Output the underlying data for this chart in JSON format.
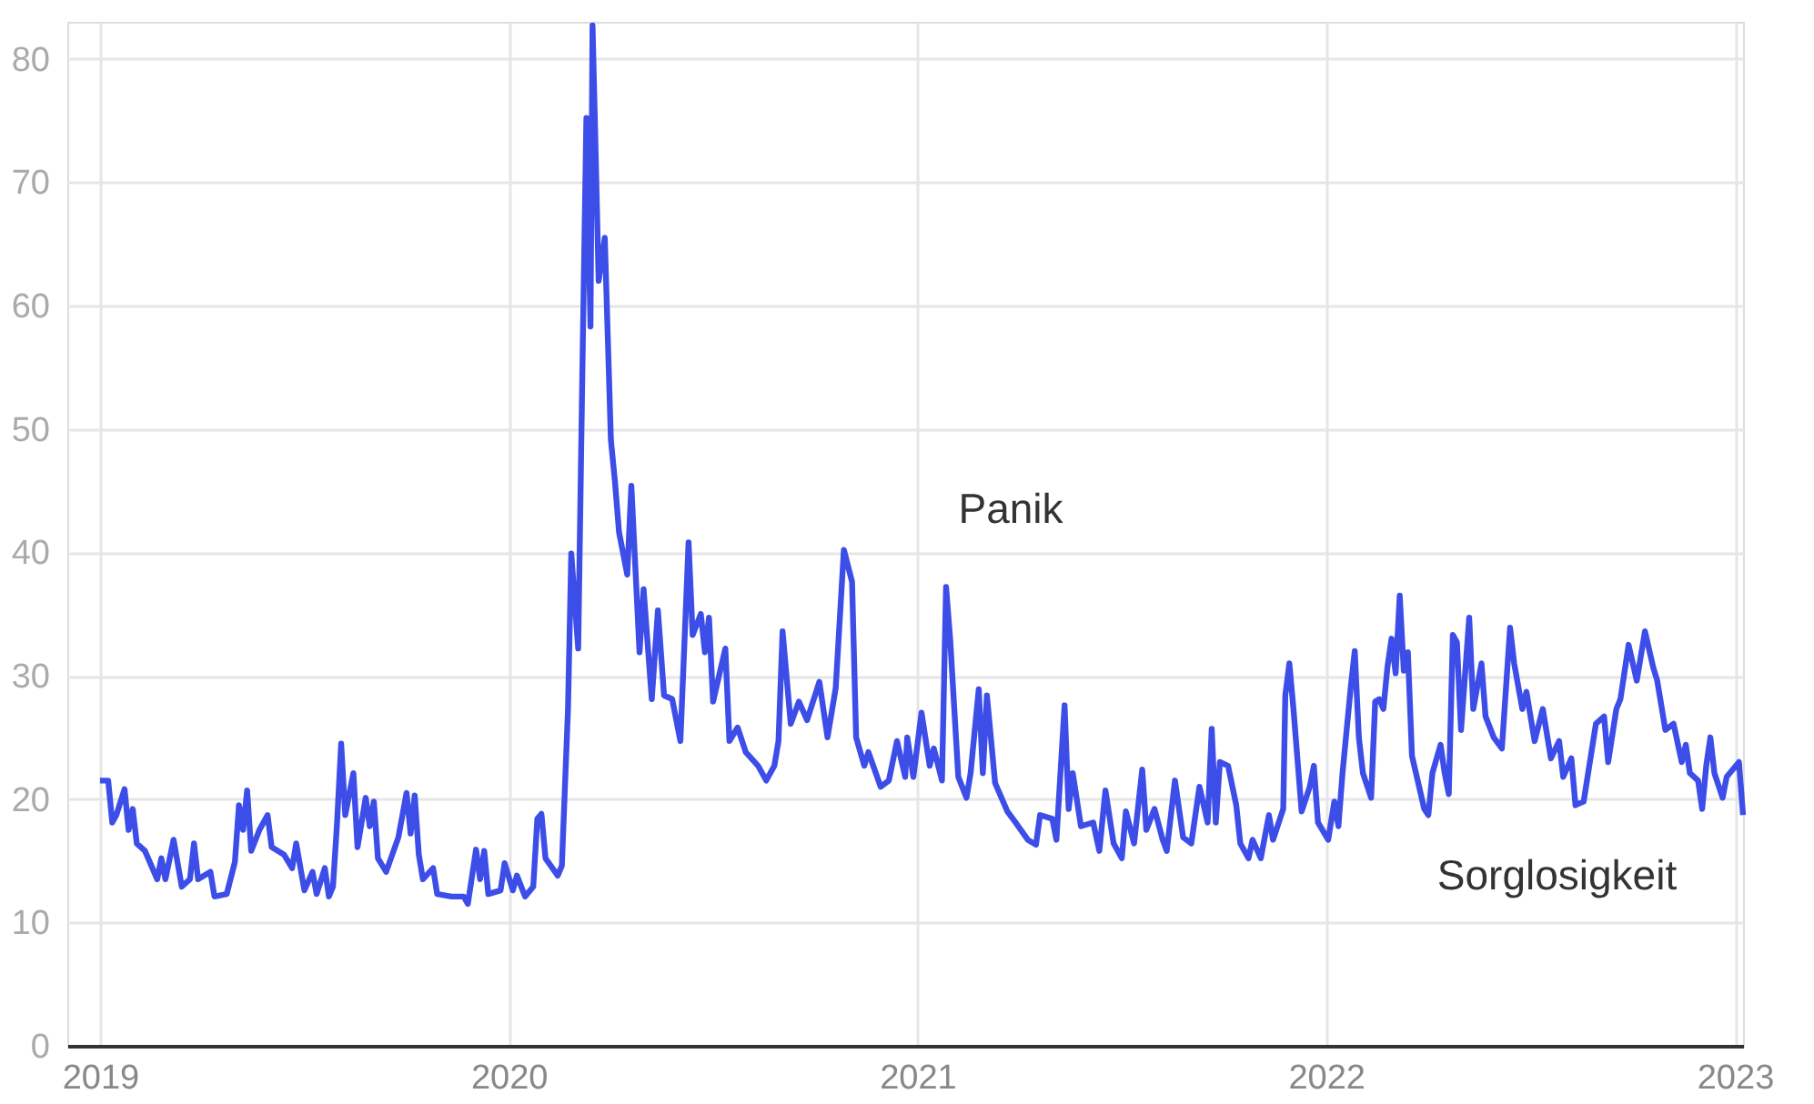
{
  "chart_data": {
    "type": "line",
    "x": [
      2019.0,
      2019.02,
      2019.03,
      2019.04,
      2019.06,
      2019.07,
      2019.08,
      2019.09,
      2019.11,
      2019.14,
      2019.15,
      2019.16,
      2019.18,
      2019.2,
      2019.22,
      2019.23,
      2019.24,
      2019.27,
      2019.28,
      2019.31,
      2019.33,
      2019.34,
      2019.35,
      2019.36,
      2019.37,
      2019.39,
      2019.41,
      2019.42,
      2019.45,
      2019.47,
      2019.48,
      2019.5,
      2019.52,
      2019.53,
      2019.55,
      2019.56,
      2019.57,
      2019.58,
      2019.59,
      2019.6,
      2019.62,
      2019.63,
      2019.65,
      2019.66,
      2019.67,
      2019.68,
      2019.7,
      2019.73,
      2019.75,
      2019.76,
      2019.77,
      2019.78,
      2019.79,
      2019.815,
      2019.825,
      2019.86,
      2019.89,
      2019.9,
      2019.92,
      2019.93,
      2019.94,
      2019.95,
      2019.98,
      2019.99,
      2020.01,
      2020.02,
      2020.04,
      2020.06,
      2020.07,
      2020.08,
      2020.09,
      2020.12,
      2020.13,
      2020.145,
      2020.153,
      2020.17,
      2020.18,
      2020.19,
      2020.2,
      2020.205,
      2020.21,
      2020.22,
      2020.235,
      2020.25,
      2020.26,
      2020.27,
      2020.29,
      2020.3,
      2020.32,
      2020.33,
      2020.35,
      2020.365,
      2020.38,
      2020.4,
      2020.42,
      2020.44,
      2020.45,
      2020.47,
      2020.48,
      2020.49,
      2020.5,
      2020.53,
      2020.54,
      2020.56,
      2020.58,
      2020.61,
      2020.63,
      2020.65,
      2020.66,
      2020.67,
      2020.69,
      2020.71,
      2020.73,
      2020.76,
      2020.78,
      2020.8,
      2020.82,
      2020.84,
      2020.85,
      2020.87,
      2020.88,
      2020.91,
      2020.93,
      2020.95,
      2020.97,
      2020.975,
      2020.99,
      2021.01,
      2021.03,
      2021.04,
      2021.06,
      2021.07,
      2021.08,
      2021.1,
      2021.12,
      2021.13,
      2021.15,
      2021.16,
      2021.17,
      2021.19,
      2021.22,
      2021.24,
      2021.27,
      2021.29,
      2021.3,
      2021.33,
      2021.34,
      2021.36,
      2021.37,
      2021.38,
      2021.4,
      2021.43,
      2021.445,
      2021.46,
      2021.48,
      2021.5,
      2021.51,
      2021.53,
      2021.55,
      2021.56,
      2021.58,
      2021.6,
      2021.61,
      2021.63,
      2021.65,
      2021.67,
      2021.69,
      2021.71,
      2021.72,
      2021.73,
      2021.74,
      2021.76,
      2021.78,
      2021.79,
      2021.81,
      2021.82,
      2021.84,
      2021.86,
      2021.87,
      2021.895,
      2021.9,
      2021.91,
      2021.92,
      2021.94,
      2021.96,
      2021.97,
      2021.98,
      2022.005,
      2022.02,
      2022.03,
      2022.04,
      2022.06,
      2022.07,
      2022.08,
      2022.09,
      2022.11,
      2022.12,
      2022.13,
      2022.14,
      2022.15,
      2022.16,
      2022.17,
      2022.18,
      2022.19,
      2022.2,
      2022.21,
      2022.24,
      2022.25,
      2022.26,
      2022.28,
      2022.29,
      2022.3,
      2022.31,
      2022.32,
      2022.33,
      2022.35,
      2022.36,
      2022.38,
      2022.39,
      2022.41,
      2022.43,
      2022.45,
      2022.46,
      2022.48,
      2022.49,
      2022.51,
      2022.53,
      2022.55,
      2022.57,
      2022.58,
      2022.6,
      2022.61,
      2022.63,
      2022.66,
      2022.68,
      2022.69,
      2022.71,
      2022.72,
      2022.74,
      2022.76,
      2022.78,
      2022.8,
      2022.81,
      2022.83,
      2022.85,
      2022.87,
      2022.88,
      2022.89,
      2022.91,
      2022.92,
      2022.93,
      2022.94,
      2022.95,
      2022.97,
      2022.98,
      2023.01,
      2023.02
    ],
    "series": [
      {
        "color": "#3d4ee8",
        "values": [
          21.5,
          21.5,
          18.1,
          18.7,
          20.8,
          17.5,
          19.2,
          16.4,
          15.8,
          13.5,
          15.2,
          13.5,
          16.7,
          12.9,
          13.5,
          16.4,
          13.5,
          14.1,
          12.1,
          12.3,
          14.9,
          19.5,
          17.5,
          20.7,
          15.8,
          17.5,
          18.7,
          16.1,
          15.5,
          14.4,
          16.4,
          12.6,
          14.1,
          12.3,
          14.4,
          12.1,
          12.9,
          18.1,
          24.5,
          18.7,
          22.1,
          16.1,
          20.1,
          17.8,
          19.8,
          15.2,
          14.1,
          16.9,
          20.5,
          17.2,
          20.3,
          15.5,
          13.5,
          14.4,
          12.3,
          12.1,
          12.1,
          11.5,
          15.9,
          13.5,
          15.8,
          12.3,
          12.6,
          14.8,
          12.6,
          13.8,
          12.1,
          12.9,
          18.4,
          18.8,
          15.2,
          13.8,
          14.6,
          27.3,
          39.9,
          32.2,
          54.3,
          75.2,
          58.3,
          82.7,
          76.1,
          62.0,
          65.5,
          49.1,
          45.7,
          41.6,
          38.2,
          45.4,
          31.9,
          37.0,
          28.1,
          35.3,
          28.4,
          28.1,
          24.7,
          40.8,
          33.3,
          35.0,
          31.9,
          34.7,
          27.9,
          32.2,
          24.7,
          25.8,
          23.8,
          22.7,
          21.5,
          22.7,
          24.7,
          33.6,
          26.1,
          27.9,
          26.4,
          29.5,
          25.0,
          29.0,
          40.2,
          37.6,
          25.0,
          22.7,
          23.8,
          21.0,
          21.5,
          24.7,
          21.8,
          25.0,
          21.8,
          27.0,
          22.7,
          24.1,
          21.5,
          37.2,
          33.0,
          21.8,
          20.1,
          22.1,
          28.9,
          22.1,
          28.4,
          21.3,
          19.0,
          18.1,
          16.7,
          16.3,
          18.7,
          18.4,
          16.7,
          27.6,
          19.2,
          22.1,
          17.8,
          18.1,
          15.8,
          20.7,
          16.4,
          15.2,
          19.0,
          16.4,
          22.4,
          17.5,
          19.2,
          16.7,
          15.8,
          21.5,
          16.9,
          16.4,
          21.0,
          18.1,
          25.7,
          18.1,
          23.0,
          22.7,
          19.5,
          16.4,
          15.2,
          16.7,
          15.2,
          18.7,
          16.7,
          19.2,
          28.4,
          31.0,
          27.3,
          19.0,
          21.0,
          22.7,
          18.1,
          16.7,
          19.8,
          17.8,
          22.1,
          29.0,
          32.0,
          25.0,
          22.1,
          20.1,
          27.9,
          28.1,
          27.3,
          30.7,
          33.0,
          30.2,
          36.5,
          30.4,
          31.9,
          23.5,
          19.2,
          18.7,
          22.1,
          24.4,
          22.1,
          20.4,
          33.3,
          32.7,
          25.6,
          34.7,
          27.3,
          31.0,
          26.7,
          25.0,
          24.1,
          33.9,
          31.0,
          27.3,
          28.7,
          24.7,
          27.3,
          23.3,
          24.7,
          21.8,
          23.3,
          19.5,
          19.8,
          26.1,
          26.7,
          23.0,
          27.3,
          28.1,
          32.5,
          29.6,
          33.6,
          30.7,
          29.6,
          25.6,
          26.1,
          23.0,
          24.4,
          22.1,
          21.5,
          19.2,
          22.7,
          25.0,
          22.1,
          20.1,
          21.8,
          23.0,
          18.7
        ]
      }
    ],
    "xlim": [
      2018.92,
      2023.02
    ],
    "xticks": [
      2019,
      2020,
      2021,
      2022,
      2023
    ],
    "ylim": [
      0,
      83
    ],
    "yticks": [
      0,
      10,
      20,
      30,
      40,
      50,
      60,
      70,
      80
    ],
    "grid": true,
    "marker": "none",
    "line_style": "solid",
    "annotations": [
      "Panik",
      "Sorglosigkeit"
    ]
  }
}
